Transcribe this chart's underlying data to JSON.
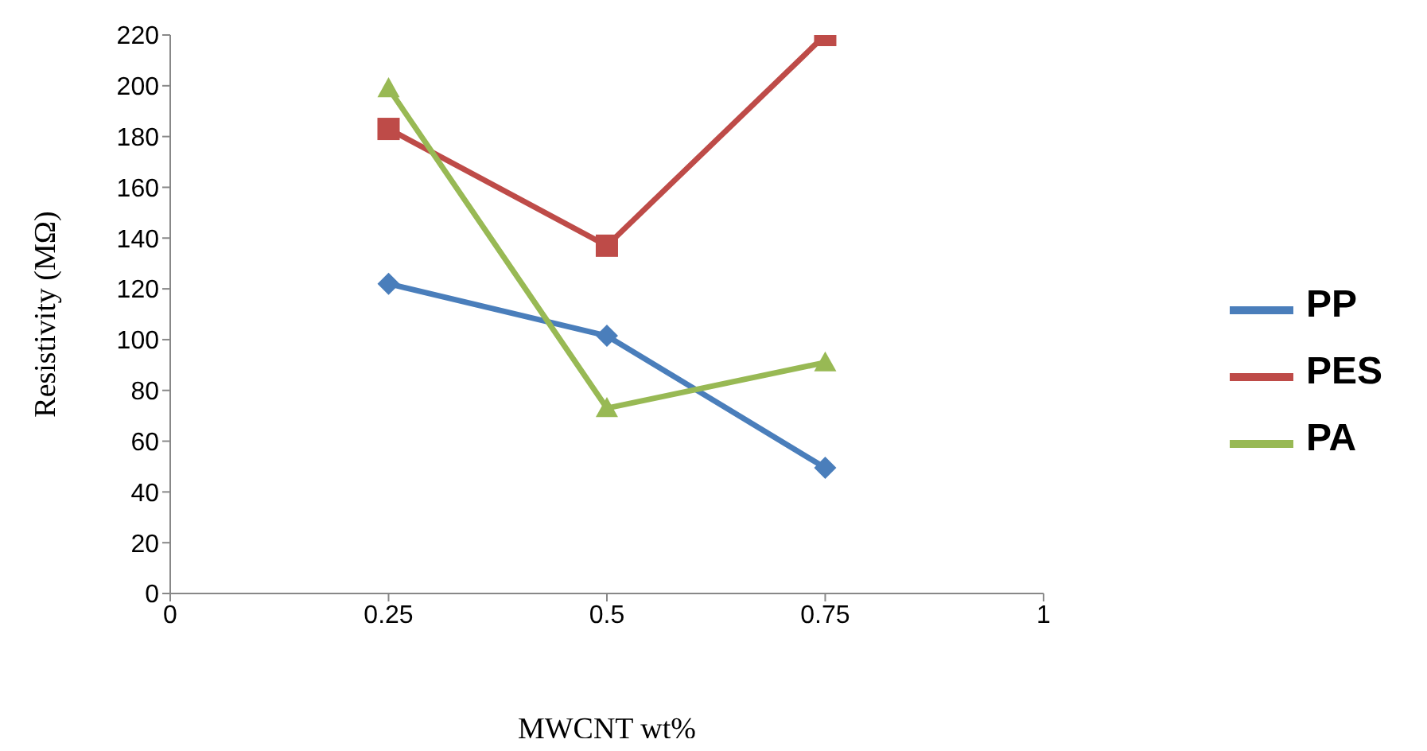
{
  "chart_data": {
    "type": "line",
    "xlabel": "MWCNT  wt%",
    "ylabel": "Resistivity (MΩ)",
    "x": [
      0.25,
      0.5,
      0.75
    ],
    "series": [
      {
        "name": "PP",
        "color": "#4a7ebb",
        "marker": "diamond",
        "values": [
          122,
          101.5,
          49.5
        ]
      },
      {
        "name": "PES",
        "color": "#be4b48",
        "marker": "square",
        "values": [
          183,
          137,
          220
        ]
      },
      {
        "name": "PA",
        "color": "#98b954",
        "marker": "triangle",
        "values": [
          199,
          73,
          91
        ]
      }
    ],
    "xlim": [
      0,
      1
    ],
    "xticks": [
      0,
      0.25,
      0.5,
      0.75,
      1
    ],
    "ylim": [
      0,
      220
    ],
    "yticks": [
      0,
      20,
      40,
      60,
      80,
      100,
      120,
      140,
      160,
      180,
      200,
      220
    ],
    "grid": false,
    "legend": "right"
  }
}
